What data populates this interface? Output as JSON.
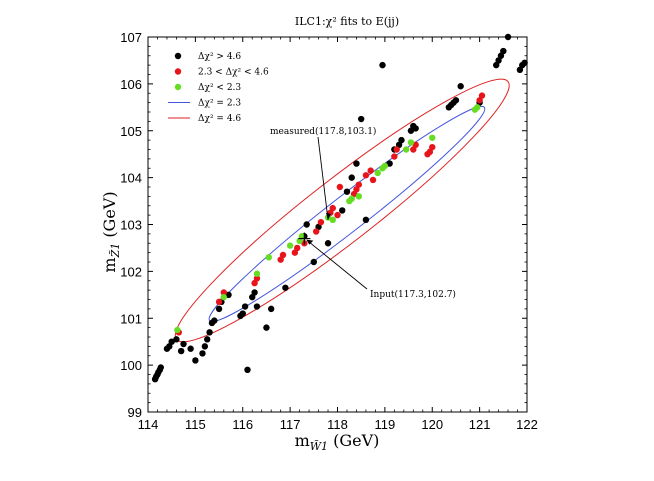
{
  "chart_data": {
    "type": "scatter",
    "title": "ILC1:χ² fits to E(jj)",
    "xlabel": "m_W̃1 (GeV)",
    "ylabel": "m_Z̃1 (GeV)",
    "xlim": [
      114,
      122
    ],
    "ylim": [
      99,
      107
    ],
    "x_ticks": [
      "114",
      "115",
      "116",
      "117",
      "118",
      "119",
      "120",
      "121",
      "122"
    ],
    "y_ticks": [
      "99",
      "100",
      "101",
      "102",
      "103",
      "104",
      "105",
      "106",
      "107"
    ],
    "legend": {
      "placement": "top-left",
      "entries": [
        {
          "label": "Δχ² > 4.6",
          "kind": "marker",
          "color": "#000000"
        },
        {
          "label": "2.3 < Δχ² < 4.6",
          "kind": "marker",
          "color": "#e8141c"
        },
        {
          "label": "Δχ² < 2.3",
          "kind": "marker",
          "color": "#66dd22"
        },
        {
          "label": "Δχ² = 2.3",
          "kind": "line",
          "color": "#4455dd"
        },
        {
          "label": "Δχ² = 4.6",
          "kind": "line",
          "color": "#dd2222"
        }
      ]
    },
    "annotations": [
      {
        "text": "measured(117.8,103.1)",
        "x": 117.8,
        "y": 103.1
      },
      {
        "text": "Input(117.3,102.7)",
        "x": 117.3,
        "y": 102.7
      }
    ],
    "contours": [
      {
        "name": "Δχ² = 2.3",
        "center": [
          117.8,
          103.1
        ],
        "end1": [
          115.3,
          100.95
        ],
        "end2": [
          121.1,
          105.5
        ],
        "minor_half": 0.38,
        "color": "#4455dd"
      },
      {
        "name": "Δχ² = 4.6",
        "center": [
          117.8,
          103.1
        ],
        "end1": [
          114.6,
          100.55
        ],
        "end2": [
          121.6,
          106.05
        ],
        "minor_half": 0.68,
        "color": "#dd2222"
      }
    ],
    "series": [
      {
        "name": "Δχ² > 4.6",
        "color": "#000000",
        "points": [
          [
            114.15,
            99.7
          ],
          [
            114.17,
            99.75
          ],
          [
            114.2,
            99.8
          ],
          [
            114.22,
            99.85
          ],
          [
            114.25,
            99.9
          ],
          [
            114.27,
            99.95
          ],
          [
            114.4,
            100.35
          ],
          [
            114.45,
            100.4
          ],
          [
            114.5,
            100.5
          ],
          [
            114.6,
            100.55
          ],
          [
            114.7,
            100.3
          ],
          [
            114.75,
            100.45
          ],
          [
            114.9,
            100.35
          ],
          [
            115.0,
            100.1
          ],
          [
            115.15,
            100.25
          ],
          [
            115.2,
            100.4
          ],
          [
            115.25,
            100.55
          ],
          [
            115.3,
            100.7
          ],
          [
            115.35,
            100.9
          ],
          [
            115.4,
            100.95
          ],
          [
            115.5,
            101.2
          ],
          [
            115.55,
            101.35
          ],
          [
            115.7,
            101.5
          ],
          [
            115.95,
            101.05
          ],
          [
            116.0,
            101.1
          ],
          [
            116.05,
            101.25
          ],
          [
            116.1,
            99.9
          ],
          [
            116.2,
            101.45
          ],
          [
            116.25,
            101.55
          ],
          [
            116.3,
            101.25
          ],
          [
            116.5,
            100.8
          ],
          [
            116.6,
            101.2
          ],
          [
            116.9,
            101.65
          ],
          [
            117.3,
            102.75
          ],
          [
            117.5,
            102.2
          ],
          [
            117.8,
            102.6
          ],
          [
            117.35,
            103.0
          ],
          [
            117.6,
            102.95
          ],
          [
            118.1,
            103.3
          ],
          [
            118.2,
            103.7
          ],
          [
            118.3,
            104.0
          ],
          [
            118.4,
            104.3
          ],
          [
            118.5,
            105.25
          ],
          [
            118.6,
            103.1
          ],
          [
            118.95,
            106.4
          ],
          [
            119.1,
            104.3
          ],
          [
            119.2,
            104.6
          ],
          [
            119.3,
            104.7
          ],
          [
            119.35,
            104.8
          ],
          [
            119.55,
            105.0
          ],
          [
            119.6,
            105.1
          ],
          [
            119.65,
            105.05
          ],
          [
            120.35,
            105.5
          ],
          [
            120.4,
            105.55
          ],
          [
            120.45,
            105.6
          ],
          [
            120.5,
            105.65
          ],
          [
            120.6,
            105.95
          ],
          [
            121.0,
            105.6
          ],
          [
            121.35,
            106.4
          ],
          [
            121.4,
            106.5
          ],
          [
            121.45,
            106.6
          ],
          [
            121.5,
            106.7
          ],
          [
            121.6,
            107.0
          ],
          [
            121.85,
            106.3
          ],
          [
            121.9,
            106.4
          ],
          [
            121.95,
            106.45
          ]
        ]
      },
      {
        "name": "2.3 < Δχ² < 4.6",
        "color": "#e8141c",
        "points": [
          [
            114.65,
            100.7
          ],
          [
            115.5,
            101.35
          ],
          [
            115.6,
            101.55
          ],
          [
            116.25,
            101.75
          ],
          [
            116.3,
            101.85
          ],
          [
            116.8,
            102.25
          ],
          [
            116.85,
            102.35
          ],
          [
            117.1,
            102.4
          ],
          [
            117.15,
            102.5
          ],
          [
            117.3,
            102.6
          ],
          [
            117.55,
            102.85
          ],
          [
            117.65,
            103.05
          ],
          [
            117.85,
            103.25
          ],
          [
            117.9,
            103.35
          ],
          [
            118.0,
            103.2
          ],
          [
            118.05,
            103.8
          ],
          [
            118.35,
            103.65
          ],
          [
            118.4,
            103.75
          ],
          [
            118.45,
            103.85
          ],
          [
            118.6,
            104.05
          ],
          [
            118.7,
            104.15
          ],
          [
            118.75,
            103.95
          ],
          [
            119.2,
            104.45
          ],
          [
            119.25,
            104.6
          ],
          [
            119.6,
            104.6
          ],
          [
            119.65,
            104.7
          ],
          [
            119.9,
            104.5
          ],
          [
            119.95,
            104.55
          ],
          [
            120.0,
            104.65
          ],
          [
            121.0,
            105.65
          ],
          [
            121.05,
            105.75
          ]
        ]
      },
      {
        "name": "Δχ² < 2.3",
        "color": "#66dd22",
        "points": [
          [
            114.62,
            100.75
          ],
          [
            115.6,
            101.45
          ],
          [
            116.3,
            101.95
          ],
          [
            116.55,
            102.3
          ],
          [
            117.0,
            102.55
          ],
          [
            117.2,
            102.65
          ],
          [
            117.25,
            102.75
          ],
          [
            117.8,
            103.15
          ],
          [
            117.9,
            103.1
          ],
          [
            118.25,
            103.5
          ],
          [
            118.3,
            103.55
          ],
          [
            118.45,
            103.6
          ],
          [
            118.85,
            104.1
          ],
          [
            118.95,
            104.2
          ],
          [
            119.0,
            104.25
          ],
          [
            119.45,
            104.6
          ],
          [
            119.55,
            104.75
          ],
          [
            120.0,
            104.85
          ],
          [
            120.9,
            105.45
          ],
          [
            120.95,
            105.5
          ]
        ]
      }
    ]
  }
}
